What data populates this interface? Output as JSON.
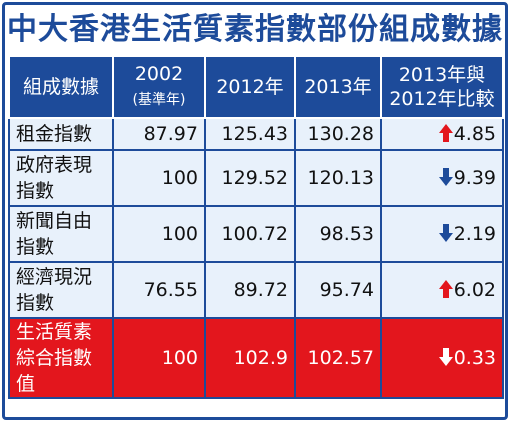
{
  "header": {
    "title": "中大香港生活質素指數部份組成數據"
  },
  "table": {
    "headers": [
      "組成數據",
      [
        "2002",
        "(基準年)"
      ],
      "2012年",
      "2013年",
      [
        "2013年與",
        "2012年比較"
      ]
    ],
    "rows": [
      [
        "租金指數",
        "87.97",
        "125.43",
        "130.28",
        "4.85"
      ],
      [
        "政府表現指數",
        "100",
        "129.52",
        "120.13",
        "9.39"
      ],
      [
        "新聞自由指數",
        "100",
        "100.72",
        "98.53",
        "2.19"
      ],
      [
        "經濟現況指數",
        "76.55",
        "89.72",
        "95.74",
        "6.02"
      ],
      [
        "生活質素綜合指數值",
        "100",
        "102.9",
        "102.57",
        "0.33"
      ]
    ]
  }
}
